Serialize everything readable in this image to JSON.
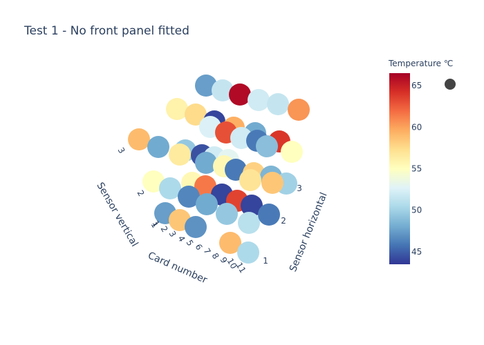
{
  "chart_data": {
    "type": "scatter3d",
    "title": "Test 1 - No front panel fitted",
    "axes": {
      "x": {
        "label": "Card number",
        "ticks": [
          "1",
          "2",
          "3",
          "4",
          "5",
          "6",
          "7",
          "8",
          "9",
          "10",
          "11"
        ]
      },
      "y": {
        "label": "Sensor horizontal",
        "ticks": [
          "1",
          "2",
          "3"
        ]
      },
      "z": {
        "label": "Sensor vertical",
        "ticks": [
          "1",
          "2",
          "3"
        ]
      }
    },
    "colorbar": {
      "title": "Temperature ℃",
      "range": [
        43.5,
        66.5
      ],
      "ticks": [
        45,
        50,
        55,
        60,
        65
      ],
      "colorscale": [
        "#313695",
        "#4575b4",
        "#74add1",
        "#abd9e9",
        "#e0f3f8",
        "#ffffbf",
        "#fee090",
        "#fdae61",
        "#f46d43",
        "#d73027",
        "#a50026"
      ]
    },
    "legend_marker_color": "#444444",
    "points": [
      {
        "t": 47.5
      },
      {
        "t": 51.5
      },
      {
        "t": 66.0
      },
      {
        "t": 52.0
      },
      {
        "t": 51.5
      },
      {
        "t": 60.5
      },
      {
        "t": 56.0
      },
      {
        "t": 57.5
      },
      {
        "t": 44.0
      },
      {
        "t": 59.5
      },
      {
        "t": 52.5
      },
      {
        "t": 63.0
      },
      {
        "t": 48.0
      },
      {
        "t": 52.0
      },
      {
        "t": 46.0
      },
      {
        "t": 64.0
      },
      {
        "t": 49.0
      },
      {
        "t": 55.0
      },
      {
        "t": 59.0
      },
      {
        "t": 48.0
      },
      {
        "t": 49.5
      },
      {
        "t": 56.5
      },
      {
        "t": 44.5
      },
      {
        "t": 52.0
      },
      {
        "t": 53.0
      },
      {
        "t": 48.0
      },
      {
        "t": 55.5
      },
      {
        "t": 46.0
      },
      {
        "t": 58.0
      },
      {
        "t": 48.5
      },
      {
        "t": 55.0
      },
      {
        "t": 50.5
      },
      {
        "t": 55.5
      },
      {
        "t": 50.0
      },
      {
        "t": 61.5
      },
      {
        "t": 44.0
      },
      {
        "t": 63.5
      },
      {
        "t": 46.5
      },
      {
        "t": 48.0
      },
      {
        "t": 49.5
      },
      {
        "t": 44.0
      },
      {
        "t": 57.0
      },
      {
        "t": 51.0
      },
      {
        "t": 58.5
      },
      {
        "t": 47.5
      },
      {
        "t": 58.5
      },
      {
        "t": 46.0
      },
      {
        "t": 47.0
      },
      {
        "t": 59.0
      },
      {
        "t": 50.5
      }
    ]
  }
}
